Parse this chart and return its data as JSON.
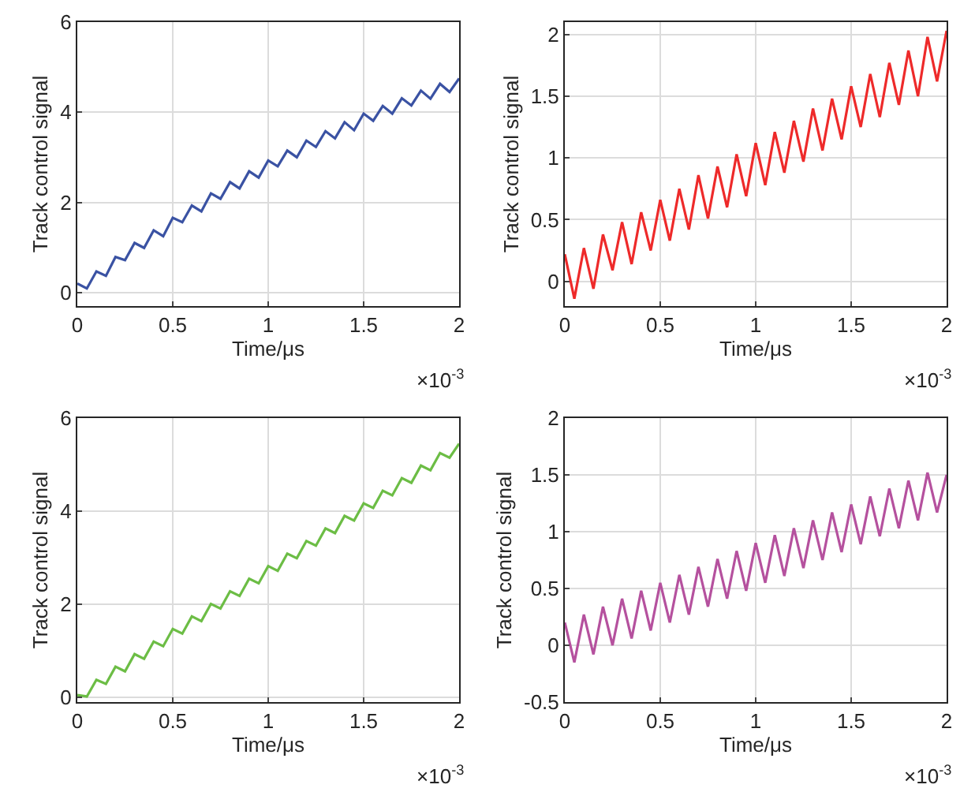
{
  "chart_data": [
    {
      "type": "line",
      "xlabel": "Time/μs",
      "ylabel": "Track control signal",
      "annotations": [
        "×10$^{-3}$"
      ],
      "grid": true,
      "xlim": [
        0,
        2
      ],
      "xticks": [
        0,
        0.5,
        1,
        1.5,
        2
      ],
      "ylim": [
        -0.3,
        6
      ],
      "yticks": [
        0,
        2,
        4,
        6
      ],
      "x": [
        0,
        0.05,
        0.1,
        0.15,
        0.2,
        0.25,
        0.3,
        0.35,
        0.4,
        0.45,
        0.5,
        0.55,
        0.6,
        0.65,
        0.7,
        0.75,
        0.8,
        0.85,
        0.9,
        0.95,
        1,
        1.05,
        1.1,
        1.15,
        1.2,
        1.25,
        1.3,
        1.35,
        1.4,
        1.45,
        1.5,
        1.55,
        1.6,
        1.65,
        1.7,
        1.75,
        1.8,
        1.85,
        1.9,
        1.95,
        2
      ],
      "series": [
        {
          "color": "#3a52a3",
          "values": [
            0.2,
            0.09,
            0.47,
            0.37,
            0.79,
            0.72,
            1.1,
            0.99,
            1.38,
            1.25,
            1.66,
            1.56,
            1.93,
            1.8,
            2.2,
            2.08,
            2.45,
            2.31,
            2.69,
            2.55,
            2.93,
            2.8,
            3.15,
            3.0,
            3.37,
            3.23,
            3.58,
            3.42,
            3.78,
            3.6,
            3.97,
            3.81,
            4.14,
            3.97,
            4.31,
            4.15,
            4.48,
            4.3,
            4.63,
            4.45,
            4.75
          ]
        }
      ]
    },
    {
      "type": "line",
      "xlabel": "Time/μs",
      "ylabel": "Track control signal",
      "annotations": [
        "×10$^{-3}$"
      ],
      "grid": true,
      "xlim": [
        0,
        2
      ],
      "xticks": [
        0,
        0.5,
        1,
        1.5,
        2
      ],
      "ylim": [
        -0.2,
        2.1
      ],
      "yticks": [
        0,
        0.5,
        1,
        1.5,
        2
      ],
      "x": [
        0,
        0.05,
        0.1,
        0.15,
        0.2,
        0.25,
        0.3,
        0.35,
        0.4,
        0.45,
        0.5,
        0.55,
        0.6,
        0.65,
        0.7,
        0.75,
        0.8,
        0.85,
        0.9,
        0.95,
        1,
        1.05,
        1.1,
        1.15,
        1.2,
        1.25,
        1.3,
        1.35,
        1.4,
        1.45,
        1.5,
        1.55,
        1.6,
        1.65,
        1.7,
        1.75,
        1.8,
        1.85,
        1.9,
        1.95,
        2
      ],
      "series": [
        {
          "color": "#ee2a2a",
          "values": [
            0.22,
            -0.14,
            0.27,
            -0.06,
            0.38,
            0.09,
            0.48,
            0.14,
            0.56,
            0.25,
            0.66,
            0.33,
            0.75,
            0.42,
            0.86,
            0.51,
            0.93,
            0.6,
            1.03,
            0.69,
            1.12,
            0.78,
            1.21,
            0.88,
            1.3,
            0.97,
            1.4,
            1.06,
            1.48,
            1.15,
            1.58,
            1.25,
            1.68,
            1.33,
            1.77,
            1.43,
            1.87,
            1.5,
            1.98,
            1.62,
            2.03
          ]
        }
      ]
    },
    {
      "type": "line",
      "xlabel": "Time/μs",
      "ylabel": "Track control signal",
      "annotations": [
        "×10$^{-3}$"
      ],
      "grid": true,
      "xlim": [
        0,
        2
      ],
      "xticks": [
        0,
        0.5,
        1,
        1.5,
        2
      ],
      "ylim": [
        -0.1,
        6
      ],
      "yticks": [
        0,
        2,
        4,
        6
      ],
      "x": [
        0,
        0.05,
        0.1,
        0.15,
        0.2,
        0.25,
        0.3,
        0.35,
        0.4,
        0.45,
        0.5,
        0.55,
        0.6,
        0.65,
        0.7,
        0.75,
        0.8,
        0.85,
        0.9,
        0.95,
        1,
        1.05,
        1.1,
        1.15,
        1.2,
        1.25,
        1.3,
        1.35,
        1.4,
        1.45,
        1.5,
        1.55,
        1.6,
        1.65,
        1.7,
        1.75,
        1.8,
        1.85,
        1.9,
        1.95,
        2
      ],
      "series": [
        {
          "color": "#6cbd45",
          "values": [
            0.05,
            0.02,
            0.38,
            0.29,
            0.66,
            0.56,
            0.93,
            0.83,
            1.2,
            1.1,
            1.47,
            1.37,
            1.74,
            1.64,
            2.01,
            1.91,
            2.28,
            2.18,
            2.55,
            2.45,
            2.82,
            2.72,
            3.09,
            2.99,
            3.36,
            3.26,
            3.63,
            3.53,
            3.9,
            3.8,
            4.17,
            4.07,
            4.44,
            4.34,
            4.71,
            4.61,
            4.98,
            4.88,
            5.25,
            5.15,
            5.45
          ]
        }
      ]
    },
    {
      "type": "line",
      "xlabel": "Time/μs",
      "ylabel": "Track control signal",
      "annotations": [
        "×10$^{-3}$"
      ],
      "grid": true,
      "xlim": [
        0,
        2
      ],
      "xticks": [
        0,
        0.5,
        1,
        1.5,
        2
      ],
      "ylim": [
        -0.5,
        2
      ],
      "yticks": [
        -0.5,
        0,
        0.5,
        1,
        1.5,
        2
      ],
      "x": [
        0,
        0.05,
        0.1,
        0.15,
        0.2,
        0.25,
        0.3,
        0.35,
        0.4,
        0.45,
        0.5,
        0.55,
        0.6,
        0.65,
        0.7,
        0.75,
        0.8,
        0.85,
        0.9,
        0.95,
        1,
        1.05,
        1.1,
        1.15,
        1.2,
        1.25,
        1.3,
        1.35,
        1.4,
        1.45,
        1.5,
        1.55,
        1.6,
        1.65,
        1.7,
        1.75,
        1.8,
        1.85,
        1.9,
        1.95,
        2
      ],
      "series": [
        {
          "color": "#b5519e",
          "values": [
            0.2,
            -0.15,
            0.27,
            -0.08,
            0.34,
            0.0,
            0.41,
            0.06,
            0.48,
            0.13,
            0.55,
            0.2,
            0.62,
            0.27,
            0.69,
            0.34,
            0.76,
            0.41,
            0.83,
            0.48,
            0.9,
            0.55,
            0.97,
            0.61,
            1.03,
            0.68,
            1.1,
            0.75,
            1.17,
            0.82,
            1.24,
            0.89,
            1.31,
            0.96,
            1.38,
            1.03,
            1.45,
            1.1,
            1.52,
            1.17,
            1.5
          ]
        }
      ]
    }
  ]
}
